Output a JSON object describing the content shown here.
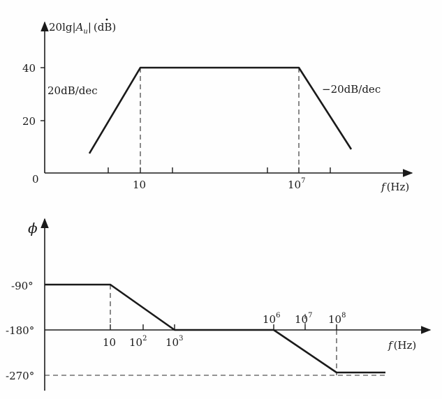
{
  "magnitude_plot": {
    "ylabel": "20lg|Au|(dB)",
    "ylabel_parts": {
      "pre": "20lg",
      "var": "A",
      "sub": "u",
      "post": "(dB)"
    },
    "xlabel": "f(Hz)",
    "xlabel_parts": {
      "var": "f",
      "unit": "(Hz)"
    },
    "origin_label": "0",
    "y_ticks": [
      "20",
      "40"
    ],
    "x_ticks": [
      {
        "base": "10",
        "exp": ""
      },
      {
        "base": "10",
        "exp": "7"
      }
    ],
    "slope_left": "20dB/dec",
    "slope_right": "−20dB/dec",
    "passband_gain_db": 40
  },
  "phase_plot": {
    "ylabel": "ϕ",
    "xlabel": "f(Hz)",
    "xlabel_parts": {
      "var": "f",
      "unit": "(Hz)"
    },
    "y_ticks": [
      "-90°",
      "-180°",
      "-270°"
    ],
    "x_ticks_below": [
      {
        "base": "10",
        "exp": ""
      },
      {
        "base": "10",
        "exp": "2"
      },
      {
        "base": "10",
        "exp": "3"
      }
    ],
    "x_ticks_above": [
      {
        "base": "10",
        "exp": "6"
      },
      {
        "base": "10",
        "exp": "7"
      },
      {
        "base": "10",
        "exp": "8"
      }
    ]
  }
}
